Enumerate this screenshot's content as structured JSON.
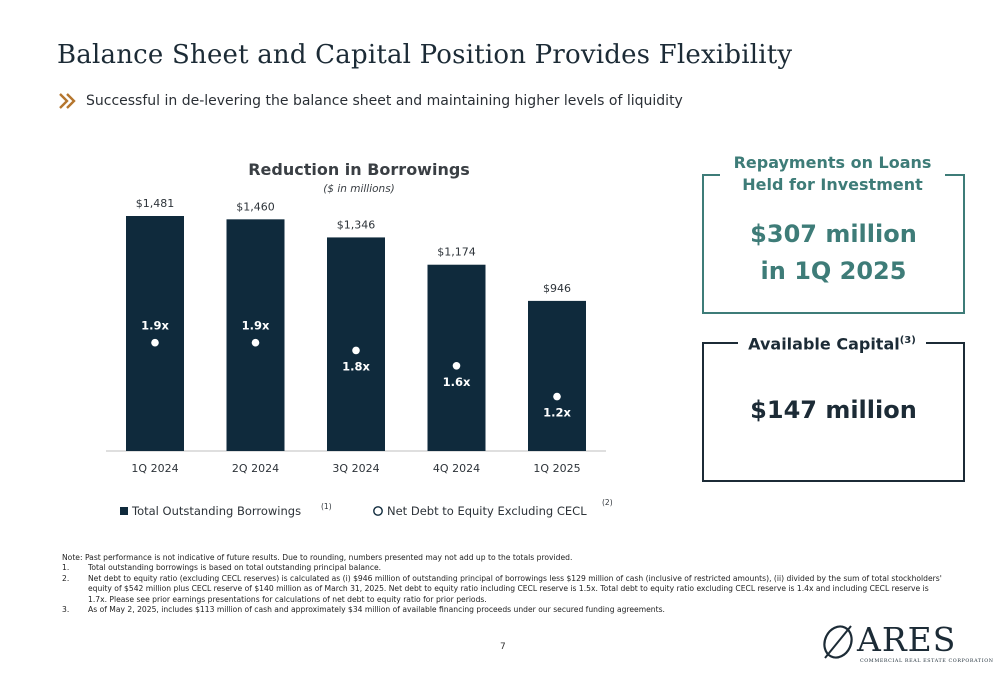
{
  "page": {
    "title": "Balance Sheet and Capital Position Provides Flexibility",
    "subtitle": "Successful in de-levering the balance sheet and maintaining higher levels of liquidity",
    "page_number": "7"
  },
  "colors": {
    "bar": "#0f2a3c",
    "accent_teal": "#3e7c78",
    "navy": "#1c2b36",
    "chevron": "#b5762e"
  },
  "chart_data": {
    "type": "bar",
    "title": "Reduction in Borrowings",
    "subtitle": "($ in millions)",
    "categories": [
      "1Q 2024",
      "2Q 2024",
      "3Q 2024",
      "4Q 2024",
      "1Q 2025"
    ],
    "series": [
      {
        "name": "Total Outstanding Borrowings",
        "name_superscript": "(1)",
        "values": [
          1481,
          1460,
          1346,
          1174,
          946
        ],
        "labels": [
          "$1,481",
          "$1,460",
          "$1,346",
          "$1,174",
          "$946"
        ]
      },
      {
        "name": "Net Debt to Equity Excluding CECL",
        "name_superscript": "(2)",
        "values": [
          1.9,
          1.9,
          1.8,
          1.6,
          1.2
        ],
        "labels": [
          "1.9x",
          "1.9x",
          "1.8x",
          "1.6x",
          "1.2x"
        ]
      }
    ],
    "ylim": [
      0,
      1500
    ],
    "ratio_range": [
      1.0,
      2.0
    ],
    "grid": false,
    "legend_position": "bottom"
  },
  "side_panels": {
    "repayments": {
      "title_line1": "Repayments on Loans",
      "title_line2": "Held for Investment",
      "value_line1": "$307 million",
      "value_line2": "in 1Q 2025"
    },
    "available_capital": {
      "title": "Available Capital",
      "title_superscript": "(3)",
      "value": "$147 million"
    }
  },
  "notes": {
    "intro": "Note: Past performance is not indicative of future results. Due to rounding, numbers presented may not add up to the totals provided.",
    "items": [
      {
        "num": "1.",
        "text": "Total outstanding borrowings is based on total outstanding principal balance."
      },
      {
        "num": "2.",
        "text": "Net debt to equity ratio (excluding CECL reserves) is calculated as (i) $946 million of outstanding principal of borrowings less $129 million of cash (inclusive of restricted amounts), (ii) divided by the sum of total stockholders' equity of $542 million plus CECL reserve of $140 million as of March 31, 2025. Net debt to equity ratio including CECL reserve is 1.5x. Total debt to equity ratio excluding CECL reserve is 1.4x and including CECL reserve is 1.7x. Please see prior earnings presentations for calculations of net debt to equity ratio for prior periods."
      },
      {
        "num": "3.",
        "text": "As of May 2, 2025, includes $113 million of cash and approximately $34 million of available financing proceeds under our secured funding agreements."
      }
    ]
  },
  "logo": {
    "name": "ARES",
    "tagline": "COMMERCIAL REAL ESTATE CORPORATION"
  }
}
